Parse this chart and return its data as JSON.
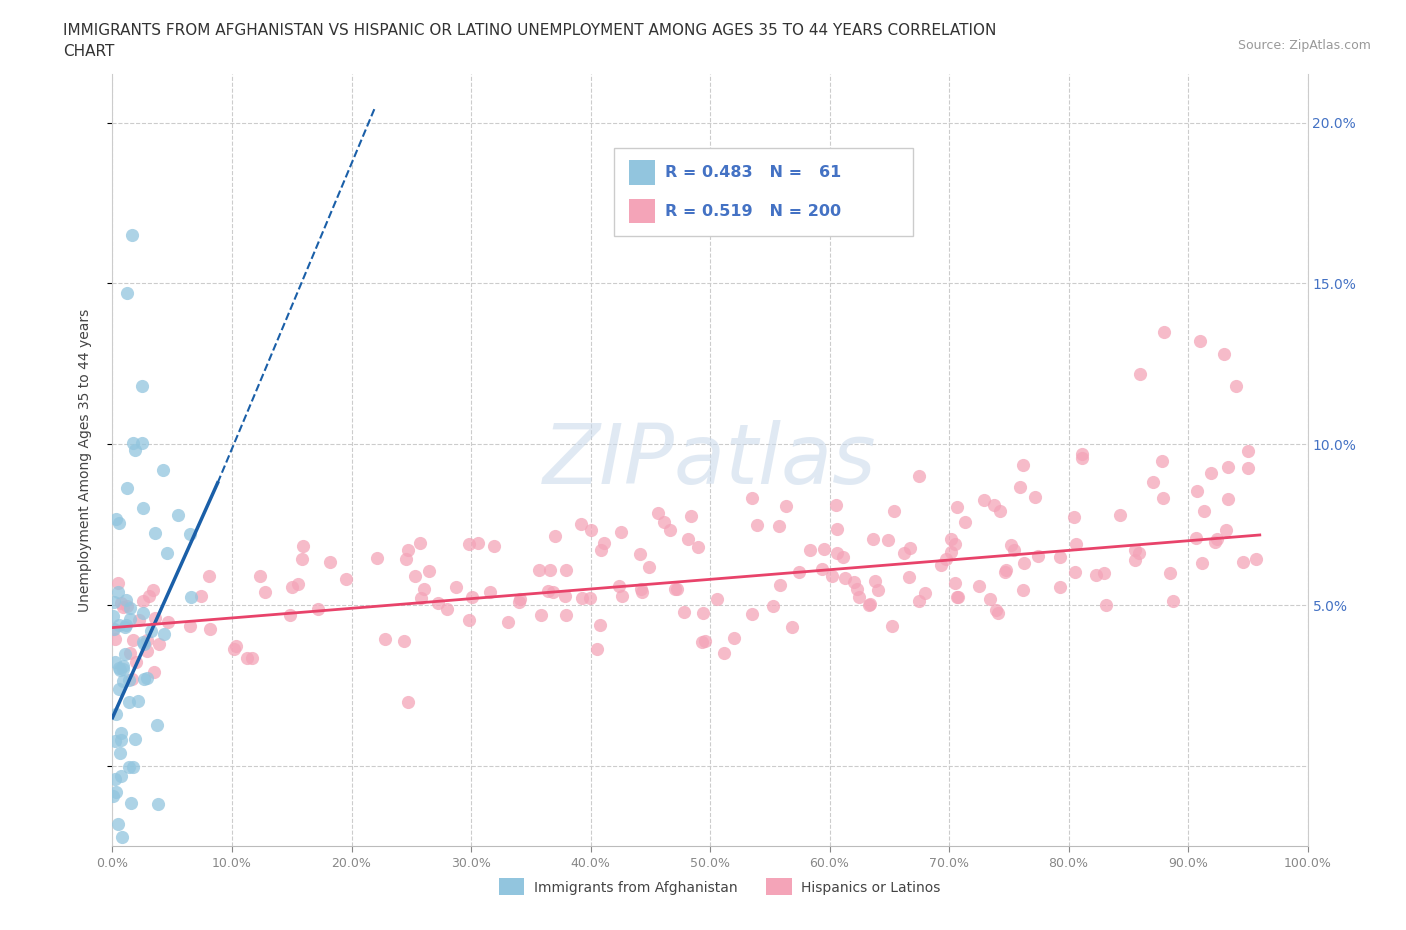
{
  "title_line1": "IMMIGRANTS FROM AFGHANISTAN VS HISPANIC OR LATINO UNEMPLOYMENT AMONG AGES 35 TO 44 YEARS CORRELATION",
  "title_line2": "CHART",
  "source": "Source: ZipAtlas.com",
  "ylabel": "Unemployment Among Ages 35 to 44 years",
  "xlim": [
    0,
    1.0
  ],
  "ylim": [
    -0.025,
    0.215
  ],
  "xticks": [
    0.0,
    0.1,
    0.2,
    0.3,
    0.4,
    0.5,
    0.6,
    0.7,
    0.8,
    0.9,
    1.0
  ],
  "xticklabels": [
    "0.0%",
    "10.0%",
    "20.0%",
    "30.0%",
    "40.0%",
    "50.0%",
    "60.0%",
    "70.0%",
    "80.0%",
    "90.0%",
    "100.0%"
  ],
  "yticks": [
    0.0,
    0.05,
    0.1,
    0.15,
    0.2
  ],
  "yticklabels_right": [
    "5.0%",
    "10.0%",
    "15.0%",
    "20.0%"
  ],
  "watermark": "ZIPatlas",
  "color_blue": "#92c5de",
  "color_pink": "#f4a4b8",
  "trendline_blue": "#1a5fa8",
  "trendline_pink": "#e8436a",
  "blue_n": 61,
  "pink_n": 200,
  "blue_R": 0.483,
  "pink_R": 0.519,
  "legend_text1": "R = 0.483   N =   61",
  "legend_text2": "R = 0.519   N = 200"
}
